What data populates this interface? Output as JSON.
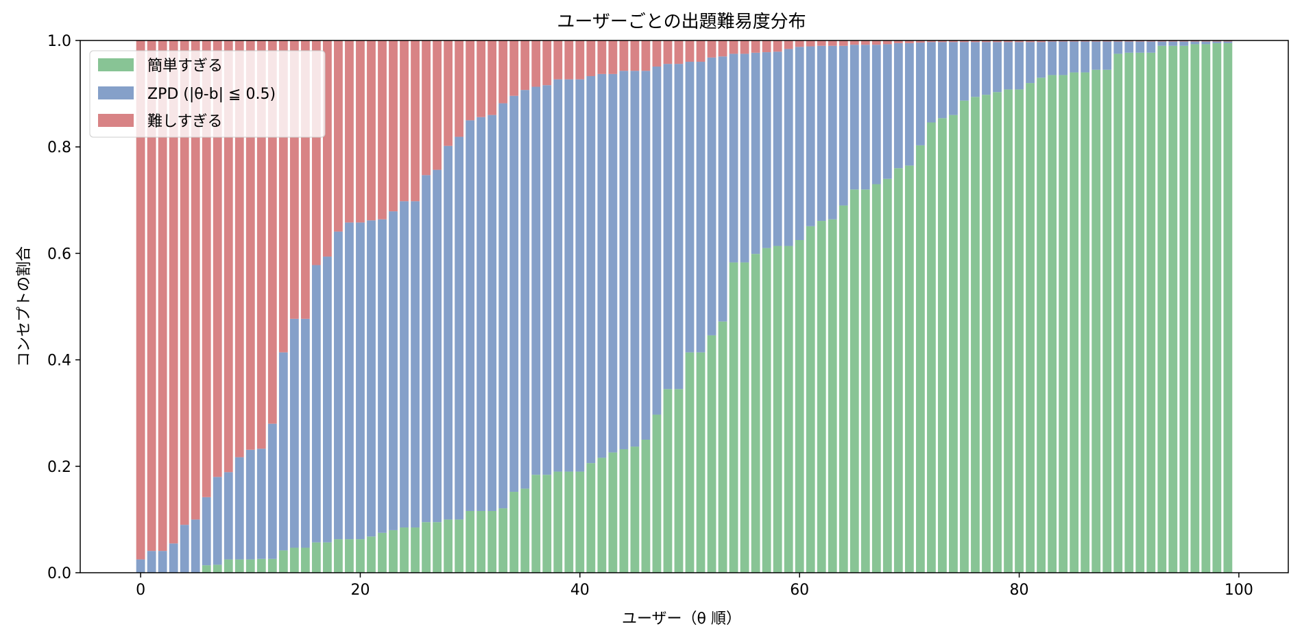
{
  "chart_data": {
    "type": "bar",
    "stacked": true,
    "title": "ユーザーごとの出題難易度分布",
    "xlabel": "ユーザー（θ 順）",
    "ylabel": "コンセプトの割合",
    "xlim": [
      -5.5,
      104.5
    ],
    "ylim": [
      0,
      1
    ],
    "xticks": [
      0,
      20,
      40,
      60,
      80,
      100
    ],
    "yticks": [
      0.0,
      0.2,
      0.4,
      0.6,
      0.8,
      1.0
    ],
    "xtick_labels": [
      "0",
      "20",
      "40",
      "60",
      "80",
      "100"
    ],
    "ytick_labels": [
      "0.0",
      "0.2",
      "0.4",
      "0.6",
      "0.8",
      "1.0"
    ],
    "grid": false,
    "legend_position": "top-left",
    "x": [
      0,
      1,
      2,
      3,
      4,
      5,
      6,
      7,
      8,
      9,
      10,
      11,
      12,
      13,
      14,
      15,
      16,
      17,
      18,
      19,
      20,
      21,
      22,
      23,
      24,
      25,
      26,
      27,
      28,
      29,
      30,
      31,
      32,
      33,
      34,
      35,
      36,
      37,
      38,
      39,
      40,
      41,
      42,
      43,
      44,
      45,
      46,
      47,
      48,
      49,
      50,
      51,
      52,
      53,
      54,
      55,
      56,
      57,
      58,
      59,
      60,
      61,
      62,
      63,
      64,
      65,
      66,
      67,
      68,
      69,
      70,
      71,
      72,
      73,
      74,
      75,
      76,
      77,
      78,
      79,
      80,
      81,
      82,
      83,
      84,
      85,
      86,
      87,
      88,
      89,
      90,
      91,
      92,
      93,
      94,
      95,
      96,
      97,
      98,
      99
    ],
    "series": [
      {
        "name": "簡単すぎる",
        "color": "#88c495",
        "values": [
          0,
          0,
          0,
          0,
          0,
          0,
          0.014,
          0.015,
          0.025,
          0.025,
          0.025,
          0.026,
          0.026,
          0.042,
          0.047,
          0.047,
          0.057,
          0.057,
          0.063,
          0.063,
          0.063,
          0.068,
          0.075,
          0.08,
          0.085,
          0.085,
          0.095,
          0.095,
          0.1,
          0.1,
          0.116,
          0.116,
          0.116,
          0.121,
          0.152,
          0.158,
          0.184,
          0.184,
          0.19,
          0.19,
          0.19,
          0.206,
          0.216,
          0.226,
          0.232,
          0.237,
          0.25,
          0.297,
          0.345,
          0.345,
          0.414,
          0.414,
          0.446,
          0.472,
          0.583,
          0.583,
          0.599,
          0.61,
          0.614,
          0.614,
          0.625,
          0.651,
          0.661,
          0.664,
          0.69,
          0.72,
          0.72,
          0.73,
          0.74,
          0.76,
          0.765,
          0.803,
          0.846,
          0.854,
          0.86,
          0.887,
          0.894,
          0.898,
          0.903,
          0.908,
          0.908,
          0.92,
          0.93,
          0.935,
          0.935,
          0.94,
          0.94,
          0.945,
          0.945,
          0.975,
          0.977,
          0.977,
          0.977,
          0.99,
          0.99,
          0.99,
          0.993,
          0.993,
          0.995,
          0.995
        ]
      },
      {
        "name": "ZPD (|θ-b| ≦ 0.5)",
        "color": "#85a0c9",
        "values": [
          0.025,
          0.041,
          0.041,
          0.055,
          0.09,
          0.1,
          0.128,
          0.165,
          0.164,
          0.192,
          0.206,
          0.207,
          0.254,
          0.372,
          0.43,
          0.43,
          0.521,
          0.537,
          0.578,
          0.595,
          0.595,
          0.594,
          0.589,
          0.599,
          0.613,
          0.613,
          0.652,
          0.662,
          0.702,
          0.719,
          0.734,
          0.74,
          0.744,
          0.761,
          0.744,
          0.749,
          0.729,
          0.732,
          0.737,
          0.737,
          0.737,
          0.727,
          0.721,
          0.711,
          0.711,
          0.706,
          0.693,
          0.654,
          0.611,
          0.611,
          0.546,
          0.546,
          0.522,
          0.498,
          0.392,
          0.392,
          0.378,
          0.368,
          0.365,
          0.37,
          0.363,
          0.338,
          0.329,
          0.326,
          0.3,
          0.272,
          0.272,
          0.262,
          0.253,
          0.235,
          0.23,
          0.193,
          0.151,
          0.143,
          0.137,
          0.11,
          0.103,
          0.099,
          0.094,
          0.089,
          0.089,
          0.077,
          0.067,
          0.063,
          0.063,
          0.058,
          0.058,
          0.053,
          0.053,
          0.023,
          0.021,
          0.021,
          0.021,
          0.008,
          0.008,
          0.008,
          0.005,
          0.005,
          0.003,
          0.003
        ]
      },
      {
        "name": "難しすぎる",
        "color": "#d88385",
        "values": [
          0.975,
          0.959,
          0.959,
          0.945,
          0.91,
          0.9,
          0.858,
          0.82,
          0.811,
          0.783,
          0.769,
          0.767,
          0.72,
          0.586,
          0.523,
          0.523,
          0.422,
          0.406,
          0.359,
          0.342,
          0.342,
          0.338,
          0.336,
          0.321,
          0.302,
          0.302,
          0.253,
          0.243,
          0.198,
          0.181,
          0.15,
          0.144,
          0.14,
          0.118,
          0.104,
          0.093,
          0.087,
          0.084,
          0.073,
          0.073,
          0.073,
          0.067,
          0.063,
          0.063,
          0.057,
          0.057,
          0.057,
          0.049,
          0.044,
          0.044,
          0.04,
          0.04,
          0.032,
          0.03,
          0.025,
          0.025,
          0.023,
          0.022,
          0.021,
          0.016,
          0.012,
          0.011,
          0.01,
          0.01,
          0.01,
          0.008,
          0.008,
          0.008,
          0.007,
          0.005,
          0.005,
          0.004,
          0.003,
          0.003,
          0.003,
          0.003,
          0.003,
          0.003,
          0.003,
          0.003,
          0.003,
          0.003,
          0.003,
          0.002,
          0.002,
          0.002,
          0.002,
          0.002,
          0.002,
          0.002,
          0.002,
          0.002,
          0.002,
          0.002,
          0.002,
          0.002,
          0.002,
          0.002,
          0.002,
          0.002
        ]
      }
    ]
  }
}
